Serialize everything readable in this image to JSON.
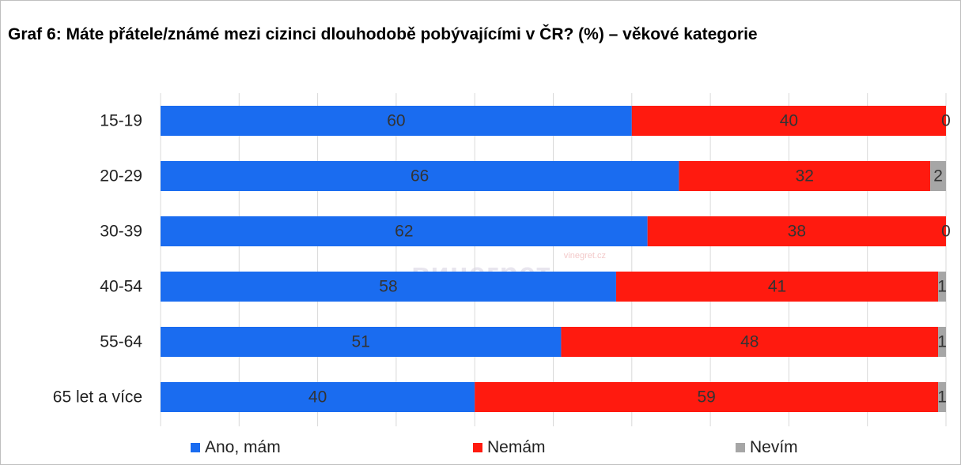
{
  "title": "Graf 6: Máte přátele/známé mezi cizinci dlouhodobě pobývajícími v ČR? (%) – věkové kategorie",
  "watermark": {
    "site": "vinegret.cz",
    "brand": "винегрет"
  },
  "colors": {
    "ano": "#1a6cf0",
    "nemam": "#ff1a0f",
    "nevim": "#a6a6a6",
    "grid": "#d9d9d9"
  },
  "chart_data": {
    "type": "bar",
    "orientation": "horizontal",
    "stacked": true,
    "categories": [
      "15-19",
      "20-29",
      "30-39",
      "40-54",
      "55-64",
      "65 let a více"
    ],
    "series": [
      {
        "name": "Ano, mám",
        "values": [
          60,
          66,
          62,
          58,
          51,
          40
        ]
      },
      {
        "name": "Nemám",
        "values": [
          40,
          32,
          38,
          41,
          48,
          59
        ]
      },
      {
        "name": "Nevím",
        "values": [
          0,
          2,
          0,
          1,
          1,
          1
        ]
      }
    ],
    "xlim": [
      0,
      100
    ],
    "grid": true,
    "legend": "bottom"
  }
}
